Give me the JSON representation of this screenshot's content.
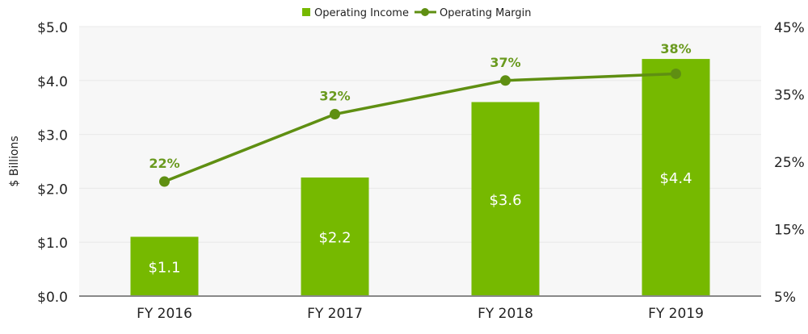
{
  "chart_data": {
    "type": "bar",
    "title": "",
    "categories": [
      "FY 2016",
      "FY 2017",
      "FY 2018",
      "FY 2019"
    ],
    "series": [
      {
        "name": "Operating Income",
        "type": "bar",
        "axis": "left",
        "values": [
          1.1,
          2.2,
          3.6,
          4.4
        ],
        "labels": [
          "$1.1",
          "$2.2",
          "$3.6",
          "$4.4"
        ]
      },
      {
        "name": "Operating Margin",
        "type": "line",
        "axis": "right",
        "values": [
          22,
          32,
          37,
          38
        ],
        "labels": [
          "22%",
          "32%",
          "37%",
          "38%"
        ]
      }
    ],
    "ylabel": "$ Billions",
    "ylim": [
      0,
      5
    ],
    "yticks": [
      "$0.0",
      "$1.0",
      "$2.0",
      "$3.0",
      "$4.0",
      "$5.0"
    ],
    "y2lim": [
      5,
      45
    ],
    "y2ticks": [
      "5%",
      "15%",
      "25%",
      "35%",
      "45%"
    ],
    "grid": true,
    "legend": "top-center",
    "colors": {
      "bar": "#76b900",
      "line": "#5f8f12",
      "line_label": "#6a9a1f",
      "bar_label": "#ffffff",
      "plot_bg": "#f7f7f7"
    }
  }
}
